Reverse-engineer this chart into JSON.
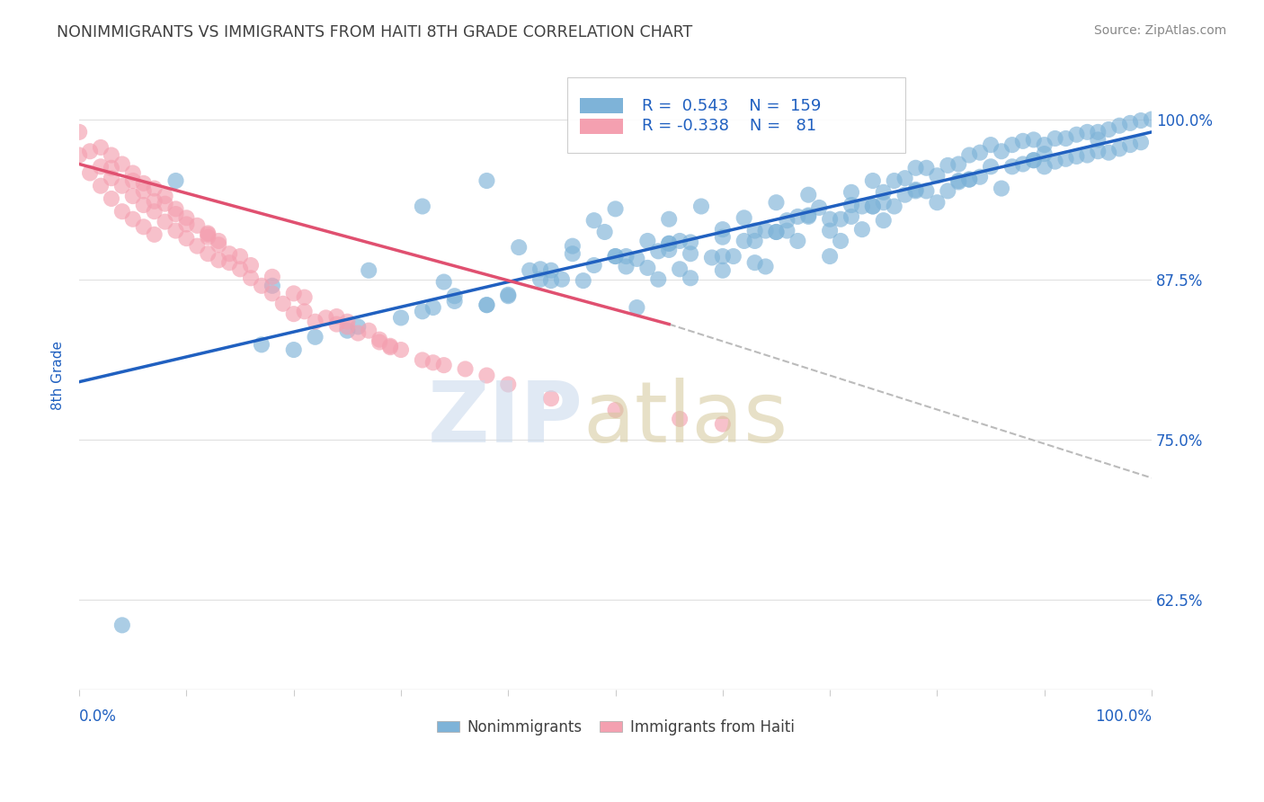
{
  "title": "NONIMMIGRANTS VS IMMIGRANTS FROM HAITI 8TH GRADE CORRELATION CHART",
  "source": "Source: ZipAtlas.com",
  "ylabel": "8th Grade",
  "ytick_labels": [
    "62.5%",
    "75.0%",
    "87.5%",
    "100.0%"
  ],
  "ytick_values": [
    0.625,
    0.75,
    0.875,
    1.0
  ],
  "xrange": [
    0.0,
    1.0
  ],
  "yrange": [
    0.555,
    1.045
  ],
  "legend_blue_R": "0.543",
  "legend_blue_N": "159",
  "legend_pink_R": "-0.338",
  "legend_pink_N": "81",
  "blue_color": "#7EB3D8",
  "pink_color": "#F4A0B0",
  "blue_line_color": "#2060C0",
  "pink_line_color": "#E05070",
  "background_color": "#FFFFFF",
  "legend_text_color": "#2060C0",
  "axis_label_color": "#2060C0",
  "title_color": "#404040",
  "blue_line_x": [
    0.0,
    1.0
  ],
  "blue_line_y": [
    0.795,
    0.99
  ],
  "pink_line_x": [
    0.0,
    0.55
  ],
  "pink_line_y": [
    0.965,
    0.84
  ],
  "dashed_line_x": [
    0.55,
    1.0
  ],
  "dashed_line_y": [
    0.84,
    0.72
  ],
  "blue_scatter_x": [
    0.04,
    0.09,
    0.18,
    0.22,
    0.25,
    0.27,
    0.3,
    0.32,
    0.34,
    0.35,
    0.38,
    0.4,
    0.41,
    0.42,
    0.43,
    0.44,
    0.45,
    0.46,
    0.47,
    0.48,
    0.49,
    0.5,
    0.5,
    0.51,
    0.52,
    0.53,
    0.53,
    0.54,
    0.55,
    0.55,
    0.56,
    0.56,
    0.57,
    0.57,
    0.58,
    0.59,
    0.6,
    0.6,
    0.61,
    0.62,
    0.62,
    0.63,
    0.63,
    0.64,
    0.65,
    0.65,
    0.66,
    0.67,
    0.67,
    0.68,
    0.68,
    0.69,
    0.7,
    0.7,
    0.71,
    0.71,
    0.72,
    0.72,
    0.73,
    0.73,
    0.74,
    0.74,
    0.75,
    0.75,
    0.76,
    0.76,
    0.77,
    0.77,
    0.78,
    0.78,
    0.79,
    0.79,
    0.8,
    0.8,
    0.81,
    0.81,
    0.82,
    0.82,
    0.83,
    0.83,
    0.84,
    0.84,
    0.85,
    0.85,
    0.86,
    0.86,
    0.87,
    0.87,
    0.88,
    0.88,
    0.89,
    0.89,
    0.9,
    0.9,
    0.91,
    0.91,
    0.92,
    0.92,
    0.93,
    0.93,
    0.94,
    0.94,
    0.95,
    0.95,
    0.96,
    0.96,
    0.97,
    0.97,
    0.98,
    0.98,
    0.99,
    0.99,
    1.0,
    0.38,
    0.44,
    0.51,
    0.57,
    0.63,
    0.4,
    0.46,
    0.32,
    0.35,
    0.48,
    0.54,
    0.6,
    0.66,
    0.72,
    0.78,
    0.17,
    0.6,
    0.33,
    0.5,
    0.65,
    0.75,
    0.83,
    0.9,
    0.26,
    0.43,
    0.55,
    0.68,
    0.38,
    0.52,
    0.64,
    0.74,
    0.82,
    0.89,
    0.95,
    0.2,
    0.55,
    0.7
  ],
  "blue_scatter_y": [
    0.605,
    0.952,
    0.87,
    0.83,
    0.835,
    0.882,
    0.845,
    0.932,
    0.873,
    0.862,
    0.952,
    0.862,
    0.9,
    0.882,
    0.883,
    0.874,
    0.875,
    0.901,
    0.874,
    0.921,
    0.912,
    0.93,
    0.893,
    0.885,
    0.853,
    0.884,
    0.905,
    0.875,
    0.922,
    0.903,
    0.883,
    0.905,
    0.876,
    0.895,
    0.932,
    0.892,
    0.914,
    0.893,
    0.893,
    0.923,
    0.905,
    0.905,
    0.888,
    0.885,
    0.935,
    0.912,
    0.913,
    0.924,
    0.905,
    0.941,
    0.924,
    0.931,
    0.913,
    0.893,
    0.922,
    0.905,
    0.943,
    0.924,
    0.932,
    0.914,
    0.952,
    0.932,
    0.943,
    0.921,
    0.952,
    0.932,
    0.954,
    0.941,
    0.962,
    0.945,
    0.962,
    0.944,
    0.956,
    0.935,
    0.964,
    0.944,
    0.965,
    0.952,
    0.972,
    0.953,
    0.974,
    0.955,
    0.98,
    0.963,
    0.975,
    0.946,
    0.98,
    0.963,
    0.983,
    0.965,
    0.984,
    0.968,
    0.98,
    0.963,
    0.985,
    0.967,
    0.985,
    0.969,
    0.988,
    0.971,
    0.99,
    0.972,
    0.99,
    0.975,
    0.992,
    0.974,
    0.995,
    0.977,
    0.997,
    0.98,
    0.999,
    0.982,
    1.0,
    0.855,
    0.882,
    0.893,
    0.904,
    0.913,
    0.863,
    0.895,
    0.85,
    0.858,
    0.886,
    0.897,
    0.908,
    0.921,
    0.933,
    0.944,
    0.824,
    0.882,
    0.853,
    0.893,
    0.912,
    0.935,
    0.953,
    0.973,
    0.838,
    0.875,
    0.898,
    0.925,
    0.855,
    0.891,
    0.913,
    0.932,
    0.951,
    0.968,
    0.984,
    0.82,
    0.903,
    0.922
  ],
  "pink_scatter_x": [
    0.0,
    0.0,
    0.01,
    0.01,
    0.02,
    0.02,
    0.02,
    0.03,
    0.03,
    0.03,
    0.04,
    0.04,
    0.04,
    0.05,
    0.05,
    0.05,
    0.06,
    0.06,
    0.06,
    0.07,
    0.07,
    0.07,
    0.08,
    0.08,
    0.09,
    0.09,
    0.1,
    0.1,
    0.11,
    0.11,
    0.12,
    0.12,
    0.13,
    0.13,
    0.14,
    0.15,
    0.16,
    0.17,
    0.18,
    0.19,
    0.2,
    0.21,
    0.22,
    0.23,
    0.24,
    0.25,
    0.26,
    0.27,
    0.28,
    0.29,
    0.3,
    0.32,
    0.34,
    0.36,
    0.38,
    0.4,
    0.44,
    0.5,
    0.56,
    0.6,
    0.03,
    0.06,
    0.09,
    0.12,
    0.15,
    0.18,
    0.21,
    0.25,
    0.29,
    0.07,
    0.1,
    0.13,
    0.16,
    0.2,
    0.24,
    0.28,
    0.33,
    0.05,
    0.08,
    0.12,
    0.14
  ],
  "pink_scatter_y": [
    0.99,
    0.972,
    0.975,
    0.958,
    0.963,
    0.978,
    0.948,
    0.954,
    0.972,
    0.938,
    0.928,
    0.948,
    0.965,
    0.922,
    0.94,
    0.958,
    0.916,
    0.933,
    0.95,
    0.91,
    0.928,
    0.946,
    0.92,
    0.94,
    0.913,
    0.93,
    0.907,
    0.923,
    0.901,
    0.917,
    0.895,
    0.911,
    0.89,
    0.905,
    0.888,
    0.883,
    0.876,
    0.87,
    0.864,
    0.856,
    0.848,
    0.85,
    0.842,
    0.845,
    0.84,
    0.838,
    0.833,
    0.835,
    0.828,
    0.822,
    0.82,
    0.812,
    0.808,
    0.805,
    0.8,
    0.793,
    0.782,
    0.773,
    0.766,
    0.762,
    0.962,
    0.944,
    0.926,
    0.908,
    0.893,
    0.877,
    0.861,
    0.842,
    0.823,
    0.936,
    0.918,
    0.902,
    0.886,
    0.864,
    0.846,
    0.826,
    0.81,
    0.952,
    0.934,
    0.91,
    0.895
  ]
}
